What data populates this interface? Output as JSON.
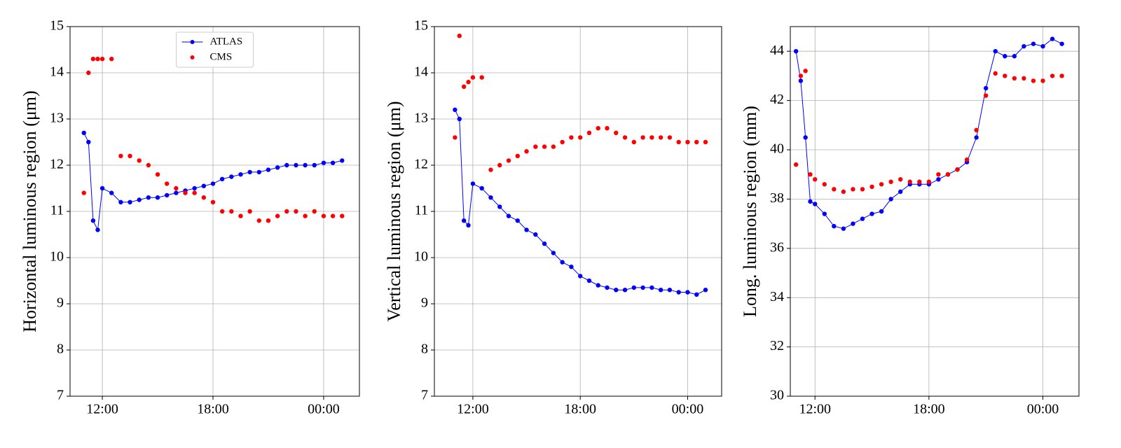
{
  "chart_data": [
    {
      "type": "line",
      "ylabel": "Horizontal luminous region (μm)",
      "legend": "upper center",
      "grid": true,
      "xlim": [
        10.25,
        25.94
      ],
      "ylim": [
        7,
        15
      ],
      "xticks": [
        {
          "value": 12,
          "label": "12:00"
        },
        {
          "value": 18,
          "label": "18:00"
        },
        {
          "value": 24,
          "label": "00:00"
        }
      ],
      "yticks": [
        7,
        8,
        9,
        10,
        11,
        12,
        13,
        14,
        15
      ],
      "x": [
        11.0,
        11.25,
        11.5,
        11.75,
        12.0,
        12.5,
        13,
        13.5,
        14,
        14.5,
        15,
        15.5,
        16,
        16.5,
        17,
        17.5,
        18,
        18.5,
        19,
        19.5,
        20,
        20.5,
        21,
        21.5,
        22,
        22.5,
        23,
        23.5,
        24,
        24.5,
        25
      ],
      "series": [
        {
          "name": "ATLAS",
          "color": "#0000ff",
          "mode": "lines+markers",
          "values": [
            12.7,
            12.5,
            10.8,
            10.6,
            11.5,
            11.4,
            11.2,
            11.2,
            11.25,
            11.3,
            11.3,
            11.35,
            11.4,
            11.45,
            11.5,
            11.55,
            11.6,
            11.7,
            11.75,
            11.8,
            11.85,
            11.85,
            11.9,
            11.95,
            12.0,
            12.0,
            12.0,
            12.0,
            12.05,
            12.05,
            12.1
          ]
        },
        {
          "name": "CMS",
          "color": "#ff0000",
          "mode": "markers",
          "values": [
            11.4,
            14.0,
            14.3,
            14.3,
            14.3,
            14.3,
            12.2,
            12.2,
            12.1,
            12.0,
            11.8,
            11.6,
            11.5,
            11.4,
            11.4,
            11.3,
            11.2,
            11.0,
            11.0,
            10.9,
            11.0,
            10.8,
            10.8,
            10.9,
            11.0,
            11.0,
            10.9,
            11.0,
            10.9,
            10.9,
            10.9
          ]
        }
      ]
    },
    {
      "type": "line",
      "ylabel": "Vertical luminous region (μm)",
      "grid": true,
      "xlim": [
        9.85,
        25.9
      ],
      "ylim": [
        7,
        15
      ],
      "xticks": [
        {
          "value": 12,
          "label": "12:00"
        },
        {
          "value": 18,
          "label": "18:00"
        },
        {
          "value": 24,
          "label": "00:00"
        }
      ],
      "yticks": [
        7,
        8,
        9,
        10,
        11,
        12,
        13,
        14,
        15
      ],
      "x": [
        11.0,
        11.25,
        11.5,
        11.75,
        12.0,
        12.5,
        13,
        13.5,
        14,
        14.5,
        15,
        15.5,
        16,
        16.5,
        17,
        17.5,
        18,
        18.5,
        19,
        19.5,
        20,
        20.5,
        21,
        21.5,
        22,
        22.5,
        23,
        23.5,
        24,
        24.5,
        25
      ],
      "series": [
        {
          "name": "ATLAS",
          "color": "#0000ff",
          "mode": "lines+markers",
          "values": [
            13.2,
            13.0,
            10.8,
            10.7,
            11.6,
            11.5,
            11.3,
            11.1,
            10.9,
            10.8,
            10.6,
            10.5,
            10.3,
            10.1,
            9.9,
            9.8,
            9.6,
            9.5,
            9.4,
            9.35,
            9.3,
            9.3,
            9.35,
            9.35,
            9.35,
            9.3,
            9.3,
            9.25,
            9.25,
            9.2,
            9.3
          ]
        },
        {
          "name": "CMS",
          "color": "#ff0000",
          "mode": "markers",
          "values": [
            12.6,
            14.8,
            13.7,
            13.8,
            13.9,
            13.9,
            11.9,
            12.0,
            12.1,
            12.2,
            12.3,
            12.4,
            12.4,
            12.4,
            12.5,
            12.6,
            12.6,
            12.7,
            12.8,
            12.8,
            12.7,
            12.6,
            12.5,
            12.6,
            12.6,
            12.6,
            12.6,
            12.5,
            12.5,
            12.5,
            12.5
          ]
        }
      ]
    },
    {
      "type": "line",
      "ylabel": "Long. luminous region (mm)",
      "grid": true,
      "xlim": [
        10.7,
        25.9
      ],
      "ylim": [
        30,
        45
      ],
      "xticks": [
        {
          "value": 12,
          "label": "12:00"
        },
        {
          "value": 18,
          "label": "18:00"
        },
        {
          "value": 24,
          "label": "00:00"
        }
      ],
      "yticks": [
        30,
        32,
        34,
        36,
        38,
        40,
        42,
        44
      ],
      "x": [
        11.0,
        11.25,
        11.5,
        11.75,
        12.0,
        12.5,
        13,
        13.5,
        14,
        14.5,
        15,
        15.5,
        16,
        16.5,
        17,
        17.5,
        18,
        18.5,
        19,
        19.5,
        20,
        20.5,
        21,
        21.5,
        22,
        22.5,
        23,
        23.5,
        24,
        24.5,
        25
      ],
      "series": [
        {
          "name": "ATLAS",
          "color": "#0000ff",
          "mode": "lines+markers",
          "values": [
            44.0,
            42.8,
            40.5,
            37.9,
            37.8,
            37.4,
            36.9,
            36.8,
            37.0,
            37.2,
            37.4,
            37.5,
            38.0,
            38.3,
            38.6,
            38.6,
            38.6,
            38.8,
            39.0,
            39.2,
            39.5,
            40.5,
            42.5,
            44.0,
            43.8,
            43.8,
            44.2,
            44.3,
            44.2,
            44.5,
            44.3
          ]
        },
        {
          "name": "CMS",
          "color": "#ff0000",
          "mode": "markers",
          "values": [
            39.4,
            43.0,
            43.2,
            39.0,
            38.8,
            38.6,
            38.4,
            38.3,
            38.4,
            38.4,
            38.5,
            38.6,
            38.7,
            38.8,
            38.7,
            38.7,
            38.7,
            39.0,
            39.0,
            39.2,
            39.6,
            40.8,
            42.2,
            43.1,
            43.0,
            42.9,
            42.9,
            42.8,
            42.8,
            43.0,
            43.0
          ]
        }
      ]
    }
  ]
}
